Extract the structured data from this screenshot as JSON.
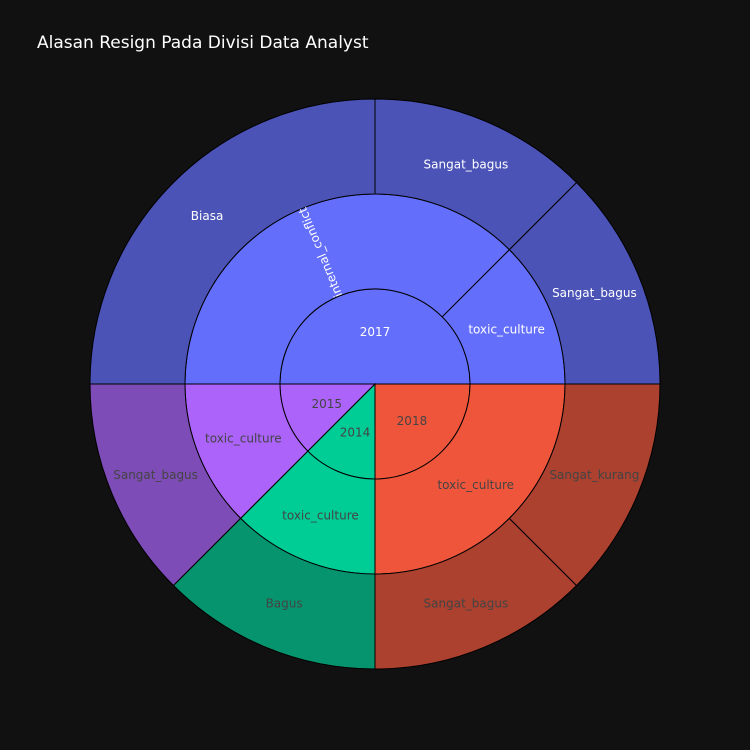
{
  "title": "Alasan Resign Pada Divisi Data Analyst",
  "chart_data": {
    "type": "sunburst",
    "title": "Alasan Resign Pada Divisi Data Analyst",
    "levels": [
      "year",
      "reason",
      "rating"
    ],
    "nodes": [
      {
        "id": "2017",
        "label": "2017",
        "parent": "",
        "value": 4,
        "color": "#636efa"
      },
      {
        "id": "2017/toxic_culture",
        "label": "toxic_culture",
        "parent": "2017",
        "value": 1,
        "color": "#636efa"
      },
      {
        "id": "2017/toxic_culture/Sangat_bagus",
        "label": "Sangat_bagus",
        "parent": "2017/toxic_culture",
        "value": 1,
        "color": "#4b53b6"
      },
      {
        "id": "2017/internal_conflict",
        "label": "internal_conflict",
        "parent": "2017",
        "value": 3,
        "color": "#636efa"
      },
      {
        "id": "2017/internal_conflict/Sangat_bagus",
        "label": "Sangat_bagus",
        "parent": "2017/internal_conflict",
        "value": 1,
        "color": "#4b53b6"
      },
      {
        "id": "2017/internal_conflict/Biasa",
        "label": "Biasa",
        "parent": "2017/internal_conflict",
        "value": 2,
        "color": "#4b53b6"
      },
      {
        "id": "2015",
        "label": "2015",
        "parent": "",
        "value": 1,
        "color": "#ab63fa"
      },
      {
        "id": "2015/toxic_culture",
        "label": "toxic_culture",
        "parent": "2015",
        "value": 1,
        "color": "#ab63fa"
      },
      {
        "id": "2015/toxic_culture/Sangat_bagus",
        "label": "Sangat_bagus",
        "parent": "2015/toxic_culture",
        "value": 1,
        "color": "#7e4cb6"
      },
      {
        "id": "2014",
        "label": "2014",
        "parent": "",
        "value": 1,
        "color": "#00cc96"
      },
      {
        "id": "2014/toxic_culture",
        "label": "toxic_culture",
        "parent": "2014",
        "value": 1,
        "color": "#00cc96"
      },
      {
        "id": "2014/toxic_culture/Bagus",
        "label": "Bagus",
        "parent": "2014/toxic_culture",
        "value": 1,
        "color": "#06946f"
      },
      {
        "id": "2018",
        "label": "2018",
        "parent": "",
        "value": 2,
        "color": "#ef553b"
      },
      {
        "id": "2018/toxic_culture",
        "label": "toxic_culture",
        "parent": "2018",
        "value": 2,
        "color": "#ef553b"
      },
      {
        "id": "2018/toxic_culture/Sangat_bagus",
        "label": "Sangat_bagus",
        "parent": "2018/toxic_culture",
        "value": 1,
        "color": "#ab412e"
      },
      {
        "id": "2018/toxic_culture/Sangat_kurang",
        "label": "Sangat_kurang",
        "parent": "2018/toxic_culture",
        "value": 1,
        "color": "#ab412e"
      }
    ]
  }
}
